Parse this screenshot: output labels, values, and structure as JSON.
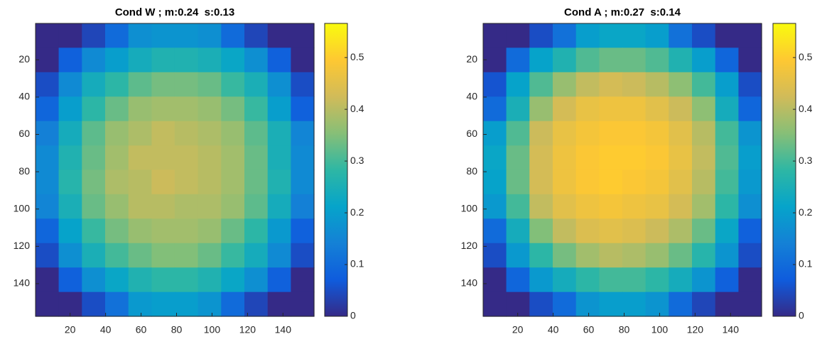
{
  "chart_data": [
    {
      "type": "heatmap",
      "title": "Cond W ; m:0.24  s:0.13",
      "x": [
        7,
        20.1,
        33.2,
        46.3,
        59.4,
        72.5,
        85.5,
        98.6,
        111.7,
        124.8,
        137.9,
        151
      ],
      "y": [
        7,
        20.1,
        33.2,
        46.3,
        59.4,
        72.5,
        85.5,
        98.6,
        111.7,
        124.8,
        137.9,
        151
      ],
      "values": [
        [
          0,
          0,
          0.04,
          0.1,
          0.17,
          0.18,
          0.18,
          0.17,
          0.1,
          0.04,
          0,
          0
        ],
        [
          0,
          0.08,
          0.16,
          0.2,
          0.24,
          0.26,
          0.26,
          0.25,
          0.22,
          0.17,
          0.08,
          0
        ],
        [
          0.05,
          0.16,
          0.24,
          0.28,
          0.32,
          0.34,
          0.34,
          0.33,
          0.29,
          0.25,
          0.17,
          0.05
        ],
        [
          0.09,
          0.2,
          0.28,
          0.33,
          0.37,
          0.38,
          0.38,
          0.37,
          0.34,
          0.29,
          0.2,
          0.08
        ],
        [
          0.14,
          0.24,
          0.32,
          0.37,
          0.39,
          0.41,
          0.4,
          0.39,
          0.37,
          0.32,
          0.25,
          0.15
        ],
        [
          0.16,
          0.26,
          0.33,
          0.38,
          0.41,
          0.41,
          0.41,
          0.4,
          0.38,
          0.33,
          0.25,
          0.16
        ],
        [
          0.16,
          0.27,
          0.34,
          0.39,
          0.4,
          0.42,
          0.41,
          0.4,
          0.38,
          0.33,
          0.26,
          0.16
        ],
        [
          0.15,
          0.25,
          0.33,
          0.37,
          0.4,
          0.4,
          0.39,
          0.39,
          0.37,
          0.32,
          0.24,
          0.14
        ],
        [
          0.09,
          0.21,
          0.29,
          0.34,
          0.37,
          0.38,
          0.38,
          0.37,
          0.33,
          0.28,
          0.19,
          0.08
        ],
        [
          0.05,
          0.17,
          0.25,
          0.3,
          0.33,
          0.35,
          0.35,
          0.33,
          0.29,
          0.24,
          0.16,
          0.05
        ],
        [
          0,
          0.08,
          0.17,
          0.22,
          0.26,
          0.28,
          0.28,
          0.26,
          0.22,
          0.17,
          0.08,
          0
        ],
        [
          0,
          0,
          0.05,
          0.11,
          0.19,
          0.2,
          0.2,
          0.18,
          0.1,
          0.04,
          0,
          0
        ]
      ],
      "xlim": [
        0.5,
        157.5
      ],
      "ylim": [
        0.5,
        157.5
      ],
      "xticks": [
        20,
        40,
        60,
        80,
        100,
        120,
        140
      ],
      "yticks": [
        20,
        40,
        60,
        80,
        100,
        120,
        140
      ],
      "clim": [
        0,
        0.566
      ],
      "cticks": [
        0,
        0.1,
        0.2,
        0.3,
        0.4,
        0.5
      ],
      "colormap": [
        "#352a87",
        "#0f5cdd",
        "#1481d6",
        "#06a4ca",
        "#2eb7a4",
        "#87bf77",
        "#d1bb59",
        "#fec832",
        "#f9fb0e"
      ]
    },
    {
      "type": "heatmap",
      "title": "Cond A ; m:0.27  s:0.14",
      "x": [
        7,
        20.1,
        33.2,
        46.3,
        59.4,
        72.5,
        85.5,
        98.6,
        111.7,
        124.8,
        137.9,
        151
      ],
      "y": [
        7,
        20.1,
        33.2,
        46.3,
        59.4,
        72.5,
        85.5,
        98.6,
        111.7,
        124.8,
        137.9,
        151
      ],
      "values": [
        [
          0,
          0,
          0.05,
          0.11,
          0.2,
          0.22,
          0.22,
          0.2,
          0.11,
          0.05,
          0,
          0
        ],
        [
          0,
          0.1,
          0.21,
          0.26,
          0.31,
          0.33,
          0.33,
          0.31,
          0.26,
          0.2,
          0.09,
          0
        ],
        [
          0.06,
          0.21,
          0.31,
          0.37,
          0.41,
          0.43,
          0.42,
          0.4,
          0.36,
          0.3,
          0.2,
          0.05
        ],
        [
          0.1,
          0.25,
          0.37,
          0.43,
          0.46,
          0.47,
          0.47,
          0.45,
          0.42,
          0.36,
          0.24,
          0.09
        ],
        [
          0.2,
          0.31,
          0.42,
          0.46,
          0.48,
          0.49,
          0.49,
          0.48,
          0.45,
          0.4,
          0.3,
          0.18
        ],
        [
          0.22,
          0.33,
          0.43,
          0.47,
          0.49,
          0.5,
          0.5,
          0.49,
          0.46,
          0.41,
          0.31,
          0.2
        ],
        [
          0.21,
          0.33,
          0.43,
          0.47,
          0.49,
          0.5,
          0.49,
          0.48,
          0.45,
          0.4,
          0.3,
          0.19
        ],
        [
          0.19,
          0.3,
          0.41,
          0.45,
          0.47,
          0.48,
          0.47,
          0.46,
          0.43,
          0.38,
          0.28,
          0.17
        ],
        [
          0.1,
          0.24,
          0.35,
          0.41,
          0.44,
          0.45,
          0.44,
          0.42,
          0.39,
          0.33,
          0.22,
          0.08
        ],
        [
          0.05,
          0.19,
          0.28,
          0.34,
          0.38,
          0.4,
          0.39,
          0.37,
          0.33,
          0.27,
          0.18,
          0.05
        ],
        [
          0,
          0.09,
          0.19,
          0.24,
          0.28,
          0.3,
          0.3,
          0.28,
          0.24,
          0.18,
          0.08,
          0
        ],
        [
          0,
          0,
          0.05,
          0.1,
          0.18,
          0.2,
          0.2,
          0.18,
          0.1,
          0.04,
          0,
          0
        ]
      ],
      "xlim": [
        0.5,
        157.5
      ],
      "ylim": [
        0.5,
        157.5
      ],
      "xticks": [
        20,
        40,
        60,
        80,
        100,
        120,
        140
      ],
      "yticks": [
        20,
        40,
        60,
        80,
        100,
        120,
        140
      ],
      "clim": [
        0,
        0.566
      ],
      "cticks": [
        0,
        0.1,
        0.2,
        0.3,
        0.4,
        0.5
      ],
      "colormap": [
        "#352a87",
        "#0f5cdd",
        "#1481d6",
        "#06a4ca",
        "#2eb7a4",
        "#87bf77",
        "#d1bb59",
        "#fec832",
        "#f9fb0e"
      ]
    }
  ]
}
